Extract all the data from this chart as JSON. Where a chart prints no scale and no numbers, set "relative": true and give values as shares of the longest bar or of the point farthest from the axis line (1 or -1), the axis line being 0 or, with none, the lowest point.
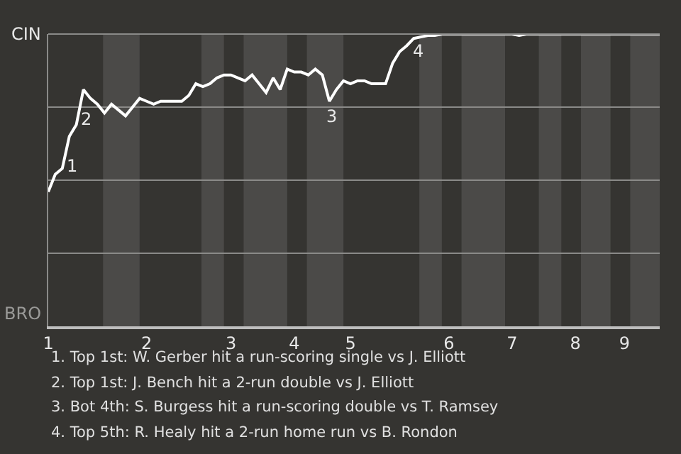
{
  "chart_data": {
    "type": "line",
    "relative": true,
    "categories": [
      "1",
      null,
      null,
      null,
      null,
      null,
      null,
      null,
      null,
      null,
      null,
      null,
      null,
      null,
      "2",
      null,
      null,
      null,
      null,
      null,
      null,
      null,
      null,
      null,
      null,
      null,
      "3",
      null,
      null,
      null,
      null,
      null,
      null,
      null,
      null,
      "4",
      null,
      null,
      null,
      null,
      null,
      null,
      null,
      "5",
      null,
      null,
      null,
      null,
      null,
      null,
      null,
      null,
      null,
      null,
      null,
      null,
      null,
      "6",
      null,
      null,
      null,
      null,
      null,
      null,
      null,
      null,
      "7",
      null,
      null,
      null,
      null,
      null,
      null,
      null,
      null,
      "8",
      null,
      null,
      null,
      null,
      null,
      null,
      "9",
      null,
      null,
      null,
      null,
      null
    ],
    "series": [
      {
        "color": "#ffffff",
        "values": [
          0.46,
          0.52,
          0.54,
          0.65,
          0.69,
          0.81,
          0.78,
          0.76,
          0.73,
          0.76,
          0.74,
          0.72,
          0.75,
          0.78,
          0.77,
          0.76,
          0.77,
          0.77,
          0.77,
          0.77,
          0.79,
          0.83,
          0.82,
          0.83,
          0.85,
          0.86,
          0.86,
          0.85,
          0.84,
          0.86,
          0.83,
          0.8,
          0.85,
          0.81,
          0.88,
          0.87,
          0.87,
          0.86,
          0.88,
          0.86,
          0.77,
          0.81,
          0.84,
          0.83,
          0.84,
          0.84,
          0.83,
          0.83,
          0.83,
          0.9,
          0.94,
          0.96,
          0.985,
          0.99,
          0.995,
          0.995,
          1,
          1,
          1,
          1,
          1,
          1,
          1,
          1,
          1,
          1,
          1,
          0.995,
          1,
          1,
          1,
          1,
          1,
          1,
          1,
          1,
          1,
          1,
          1,
          1,
          1,
          1,
          1,
          1,
          1,
          1,
          1,
          1
        ]
      }
    ],
    "grid": "y",
    "marker": "none",
    "line_style": "solid",
    "annotations": [
      "1",
      "2",
      "3",
      "4",
      "CIN",
      "BRO",
      "1. Top 1st: W. Gerber hit a run-scoring single vs J. Elliott",
      "2. Top 1st: J. Bench hit a 2-run double vs J. Elliott",
      "3. Bot 4th: S. Burgess hit a run-scoring double vs T. Ramsey",
      "4. Top 5th: R. Healy hit a 2-run home run vs B. Rondon"
    ]
  }
}
